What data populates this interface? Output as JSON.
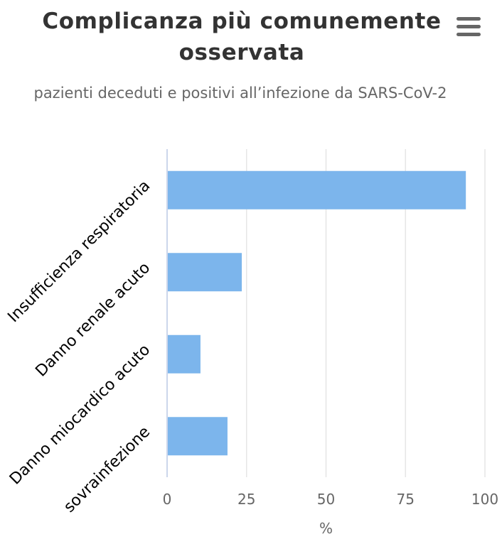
{
  "chart_data": {
    "type": "bar",
    "orientation": "horizontal",
    "title": "Complicanza più comunemente osservata",
    "subtitle": "pazienti deceduti e positivi all’infezione da SARS-CoV-2",
    "categories": [
      "Insufficienza respiratoria",
      "Danno renale acuto",
      "Danno miocardico acuto",
      "sovrainfezione"
    ],
    "values": [
      94,
      23.5,
      10.5,
      19
    ],
    "xlabel": "%",
    "ylabel": "",
    "xlim": [
      0,
      100
    ],
    "xticks": [
      "0",
      "25",
      "50",
      "75",
      "100"
    ],
    "grid": true,
    "bar_color": "#7cb5ec"
  }
}
